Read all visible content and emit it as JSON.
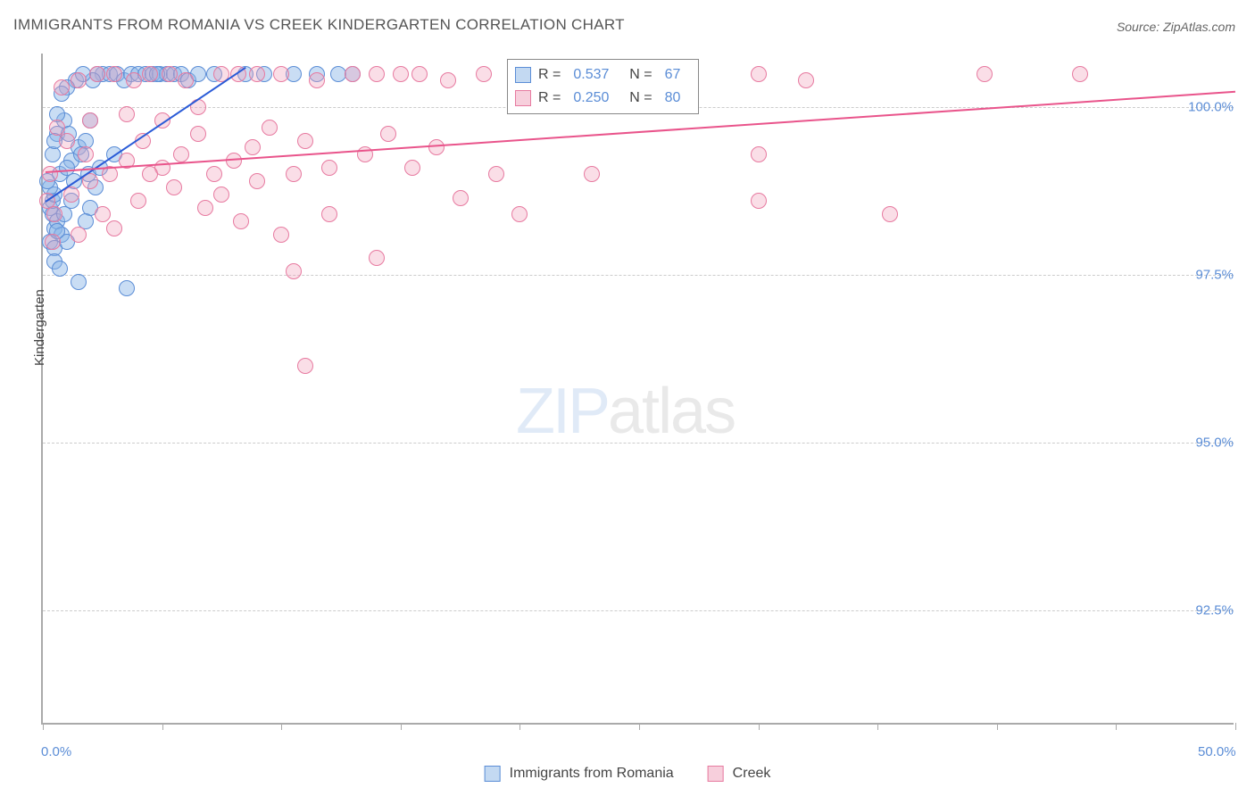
{
  "title": "IMMIGRANTS FROM ROMANIA VS CREEK KINDERGARTEN CORRELATION CHART",
  "source": "Source: ZipAtlas.com",
  "y_axis_label": "Kindergarten",
  "watermark": {
    "zip": "ZIP",
    "atlas": "atlas"
  },
  "chart": {
    "type": "scatter",
    "xlim": [
      0,
      50
    ],
    "ylim": [
      90.8,
      100.8
    ],
    "x_ticks": [
      0,
      5,
      10,
      15,
      20,
      25,
      30,
      35,
      40,
      45,
      50
    ],
    "x_tick_labels": {
      "0": "0.0%",
      "50": "50.0%"
    },
    "y_ticks": [
      92.5,
      95.0,
      97.5,
      100.0
    ],
    "y_tick_labels": [
      "92.5%",
      "95.0%",
      "97.5%",
      "100.0%"
    ],
    "grid_color": "#cccccc",
    "background_color": "#ffffff",
    "point_radius": 9,
    "series": [
      {
        "name": "Immigrants from Romania",
        "color_fill": "rgba(135,180,230,0.45)",
        "color_stroke": "#5b8dd6",
        "trend_color": "#2a5bd7",
        "R": "0.537",
        "N": "67",
        "trend": {
          "x1": 0.1,
          "y1": 98.6,
          "x2": 8.5,
          "y2": 100.6
        },
        "points": [
          [
            0.3,
            98.5
          ],
          [
            0.4,
            98.4
          ],
          [
            0.5,
            98.2
          ],
          [
            0.6,
            98.3
          ],
          [
            0.4,
            98.6
          ],
          [
            0.5,
            98.7
          ],
          [
            0.8,
            98.1
          ],
          [
            0.9,
            98.4
          ],
          [
            0.3,
            98.0
          ],
          [
            0.5,
            97.9
          ],
          [
            1.2,
            99.2
          ],
          [
            1.5,
            99.4
          ],
          [
            1.8,
            99.5
          ],
          [
            2.0,
            99.8
          ],
          [
            0.7,
            99.0
          ],
          [
            1.0,
            99.1
          ],
          [
            1.3,
            98.9
          ],
          [
            1.6,
            99.3
          ],
          [
            0.6,
            99.6
          ],
          [
            0.9,
            99.8
          ],
          [
            2.5,
            100.5
          ],
          [
            2.8,
            100.5
          ],
          [
            3.1,
            100.5
          ],
          [
            3.4,
            100.4
          ],
          [
            3.7,
            100.5
          ],
          [
            4.0,
            100.5
          ],
          [
            4.3,
            100.5
          ],
          [
            4.6,
            100.5
          ],
          [
            4.9,
            100.5
          ],
          [
            5.2,
            100.5
          ],
          [
            5.5,
            100.5
          ],
          [
            5.8,
            100.5
          ],
          [
            6.1,
            100.4
          ],
          [
            2.3,
            100.5
          ],
          [
            2.1,
            100.4
          ],
          [
            1.4,
            100.4
          ],
          [
            1.7,
            100.5
          ],
          [
            1.0,
            100.3
          ],
          [
            0.8,
            100.2
          ],
          [
            0.6,
            99.9
          ],
          [
            6.5,
            100.5
          ],
          [
            7.2,
            100.5
          ],
          [
            8.5,
            100.5
          ],
          [
            9.3,
            100.5
          ],
          [
            10.5,
            100.5
          ],
          [
            11.5,
            100.5
          ],
          [
            12.4,
            100.5
          ],
          [
            13.0,
            100.5
          ],
          [
            0.5,
            97.7
          ],
          [
            0.7,
            97.6
          ],
          [
            1.5,
            97.4
          ],
          [
            3.5,
            97.3
          ],
          [
            0.3,
            98.8
          ],
          [
            1.1,
            99.6
          ],
          [
            1.9,
            99.0
          ],
          [
            2.4,
            99.1
          ],
          [
            3.0,
            99.3
          ],
          [
            2.2,
            98.8
          ],
          [
            0.4,
            99.3
          ],
          [
            0.2,
            98.9
          ],
          [
            0.5,
            99.5
          ],
          [
            1.0,
            98.0
          ],
          [
            2.0,
            98.5
          ],
          [
            1.2,
            98.6
          ],
          [
            0.6,
            98.15
          ],
          [
            1.8,
            98.3
          ],
          [
            4.8,
            100.5
          ]
        ]
      },
      {
        "name": "Creek",
        "color_fill": "rgba(240,160,185,0.35)",
        "color_stroke": "#e77aa0",
        "trend_color": "#e9548b",
        "R": "0.250",
        "N": "80",
        "trend": {
          "x1": 0.1,
          "y1": 99.05,
          "x2": 50.0,
          "y2": 100.25
        },
        "points": [
          [
            0.5,
            98.4
          ],
          [
            1.2,
            98.7
          ],
          [
            2.0,
            98.9
          ],
          [
            2.8,
            99.0
          ],
          [
            3.5,
            99.2
          ],
          [
            4.2,
            99.5
          ],
          [
            5.0,
            99.1
          ],
          [
            5.8,
            99.3
          ],
          [
            6.5,
            99.6
          ],
          [
            7.2,
            99.0
          ],
          [
            0.8,
            100.3
          ],
          [
            1.5,
            100.4
          ],
          [
            2.3,
            100.5
          ],
          [
            3.0,
            100.5
          ],
          [
            3.8,
            100.4
          ],
          [
            4.5,
            100.5
          ],
          [
            5.3,
            100.5
          ],
          [
            6.0,
            100.4
          ],
          [
            7.5,
            100.5
          ],
          [
            8.2,
            100.5
          ],
          [
            9.0,
            100.5
          ],
          [
            10.0,
            100.5
          ],
          [
            11.5,
            100.4
          ],
          [
            13.0,
            100.5
          ],
          [
            14.0,
            100.5
          ],
          [
            15.0,
            100.5
          ],
          [
            15.8,
            100.5
          ],
          [
            17.0,
            100.4
          ],
          [
            18.5,
            100.5
          ],
          [
            20.5,
            100.5
          ],
          [
            22.0,
            100.5
          ],
          [
            23.0,
            100.4
          ],
          [
            24.5,
            100.5
          ],
          [
            26.0,
            100.5
          ],
          [
            30.0,
            100.5
          ],
          [
            32.0,
            100.4
          ],
          [
            39.5,
            100.5
          ],
          [
            43.5,
            100.5
          ],
          [
            8.0,
            99.2
          ],
          [
            8.8,
            99.4
          ],
          [
            9.5,
            99.7
          ],
          [
            10.5,
            99.0
          ],
          [
            11.0,
            99.5
          ],
          [
            12.0,
            99.1
          ],
          [
            13.5,
            99.3
          ],
          [
            14.5,
            99.6
          ],
          [
            15.5,
            99.1
          ],
          [
            16.5,
            99.4
          ],
          [
            19.0,
            99.0
          ],
          [
            23.0,
            99.0
          ],
          [
            30.0,
            99.3
          ],
          [
            30.0,
            98.6
          ],
          [
            35.5,
            98.4
          ],
          [
            2.0,
            99.8
          ],
          [
            3.5,
            99.9
          ],
          [
            5.0,
            99.8
          ],
          [
            6.5,
            100.0
          ],
          [
            1.0,
            99.5
          ],
          [
            0.3,
            99.0
          ],
          [
            0.6,
            99.7
          ],
          [
            2.5,
            98.4
          ],
          [
            4.0,
            98.6
          ],
          [
            5.5,
            98.8
          ],
          [
            6.8,
            98.5
          ],
          [
            7.5,
            98.7
          ],
          [
            8.3,
            98.3
          ],
          [
            9.0,
            98.9
          ],
          [
            10.0,
            98.1
          ],
          [
            12.0,
            98.4
          ],
          [
            14.0,
            97.75
          ],
          [
            17.5,
            98.65
          ],
          [
            10.5,
            97.55
          ],
          [
            11.0,
            96.15
          ],
          [
            1.5,
            98.1
          ],
          [
            3.0,
            98.2
          ],
          [
            0.4,
            98.0
          ],
          [
            1.8,
            99.3
          ],
          [
            4.5,
            99.0
          ],
          [
            20.0,
            98.4
          ],
          [
            0.2,
            98.6
          ]
        ]
      }
    ]
  },
  "bottom_legend": [
    {
      "swatch": "blue",
      "label": "Immigrants from Romania"
    },
    {
      "swatch": "pink",
      "label": "Creek"
    }
  ]
}
